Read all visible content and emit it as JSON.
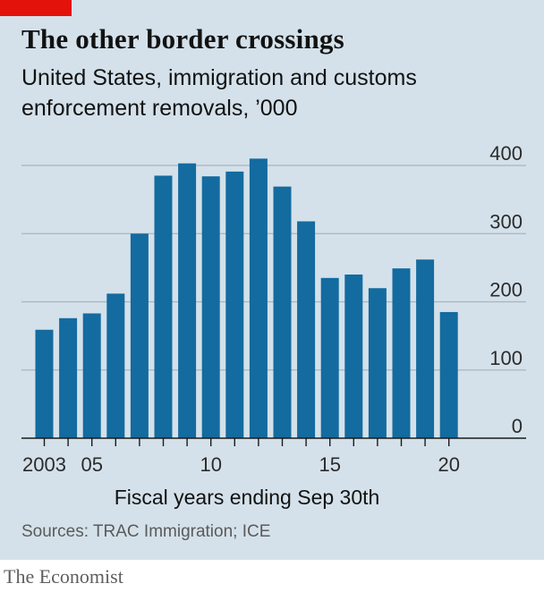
{
  "header": {
    "title": "The other border crossings",
    "subtitle": "United States, immigration and customs enforcement removals, ’000"
  },
  "footer": {
    "source": "Sources: TRAC Immigration; ICE",
    "brand": "The Economist"
  },
  "colors": {
    "bar": "#136ba0",
    "panel": "#d4e1ea",
    "grid": "#a8b5bf",
    "accent": "#e3120b"
  },
  "chart_data": {
    "type": "bar",
    "title": "The other border crossings",
    "subtitle": "United States, immigration and customs enforcement removals, ’000",
    "xlabel": "Fiscal years ending Sep 30th",
    "ylabel": "",
    "ylim": [
      0,
      400
    ],
    "yticks": [
      0,
      100,
      200,
      300,
      400
    ],
    "ytick_labels": [
      "0",
      "100",
      "200",
      "300",
      "400"
    ],
    "xtick_labels": [
      {
        "category": "2003",
        "label": "2003"
      },
      {
        "category": "2005",
        "label": "05"
      },
      {
        "category": "2010",
        "label": "10"
      },
      {
        "category": "2015",
        "label": "15"
      },
      {
        "category": "2020",
        "label": "20"
      }
    ],
    "categories": [
      "2003",
      "2004",
      "2005",
      "2006",
      "2007",
      "2008",
      "2009",
      "2010",
      "2011",
      "2012",
      "2013",
      "2014",
      "2015",
      "2016",
      "2017",
      "2018",
      "2019",
      "2020"
    ],
    "values": [
      159,
      176,
      183,
      212,
      300,
      385,
      403,
      384,
      391,
      410,
      369,
      318,
      235,
      240,
      220,
      249,
      262,
      185
    ],
    "grid": true,
    "gridlines": "horizontal",
    "y_axis_side": "right"
  }
}
